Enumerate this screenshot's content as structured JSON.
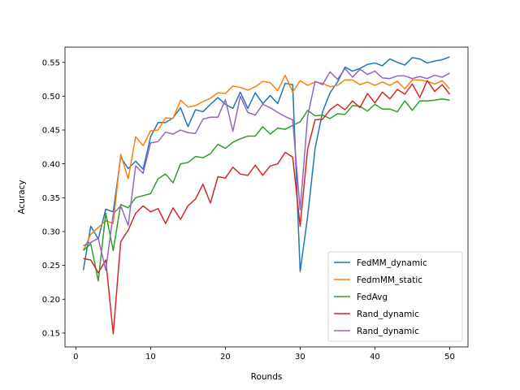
{
  "chart_data": {
    "type": "line",
    "xlabel": "Rounds",
    "ylabel": "Acuracy",
    "xlim": [
      -1.45,
      52.45
    ],
    "ylim": [
      0.1295,
      0.5725
    ],
    "xticks": [
      0,
      10,
      20,
      30,
      40,
      50
    ],
    "yticks": [
      0.15,
      0.2,
      0.25,
      0.3,
      0.35,
      0.4,
      0.45,
      0.5,
      0.55
    ],
    "grid": false,
    "legend_position": "lower-right",
    "x": [
      1,
      2,
      3,
      4,
      5,
      6,
      7,
      8,
      9,
      10,
      11,
      12,
      13,
      14,
      15,
      16,
      17,
      18,
      19,
      20,
      21,
      22,
      23,
      24,
      25,
      26,
      27,
      28,
      29,
      30,
      31,
      32,
      33,
      34,
      35,
      36,
      37,
      38,
      39,
      40,
      41,
      42,
      43,
      44,
      45,
      46,
      47,
      48,
      49,
      50
    ],
    "series": [
      {
        "name": "FedMM_dynamic",
        "color": "#1f77b4",
        "values": [
          0.243,
          0.308,
          0.289,
          0.333,
          0.329,
          0.41,
          0.393,
          0.404,
          0.392,
          0.44,
          0.461,
          0.461,
          0.468,
          0.483,
          0.455,
          0.48,
          0.477,
          0.488,
          0.498,
          0.488,
          0.482,
          0.506,
          0.482,
          0.505,
          0.489,
          0.501,
          0.489,
          0.519,
          0.517,
          0.241,
          0.322,
          0.423,
          0.477,
          0.505,
          0.521,
          0.543,
          0.537,
          0.541,
          0.547,
          0.549,
          0.545,
          0.555,
          0.55,
          0.546,
          0.557,
          0.555,
          0.549,
          0.552,
          0.554,
          0.558
        ]
      },
      {
        "name": "FedmMM_static",
        "color": "#ff7f0e",
        "values": [
          0.272,
          0.296,
          0.306,
          0.316,
          0.312,
          0.414,
          0.378,
          0.44,
          0.427,
          0.449,
          0.45,
          0.468,
          0.467,
          0.494,
          0.484,
          0.486,
          0.492,
          0.497,
          0.505,
          0.504,
          0.515,
          0.513,
          0.509,
          0.514,
          0.522,
          0.52,
          0.508,
          0.531,
          0.506,
          0.523,
          0.516,
          0.521,
          0.519,
          0.514,
          0.516,
          0.524,
          0.524,
          0.517,
          0.521,
          0.516,
          0.521,
          0.516,
          0.522,
          0.511,
          0.524,
          0.524,
          0.522,
          0.518,
          0.523,
          0.511
        ]
      },
      {
        "name": "FedAvg",
        "color": "#2ca02c",
        "values": [
          0.272,
          0.282,
          0.227,
          0.327,
          0.272,
          0.34,
          0.335,
          0.35,
          0.353,
          0.356,
          0.378,
          0.385,
          0.372,
          0.4,
          0.402,
          0.411,
          0.409,
          0.415,
          0.429,
          0.423,
          0.432,
          0.437,
          0.441,
          0.441,
          0.455,
          0.444,
          0.453,
          0.451,
          0.457,
          0.462,
          0.479,
          0.471,
          0.472,
          0.467,
          0.474,
          0.473,
          0.486,
          0.485,
          0.478,
          0.488,
          0.481,
          0.481,
          0.477,
          0.493,
          0.479,
          0.493,
          0.493,
          0.494,
          0.496,
          0.494
        ]
      },
      {
        "name": "Rand_dynamic",
        "color": "#d62728",
        "values": [
          0.26,
          0.258,
          0.239,
          0.258,
          0.149,
          0.285,
          0.302,
          0.327,
          0.338,
          0.329,
          0.334,
          0.312,
          0.335,
          0.318,
          0.338,
          0.348,
          0.37,
          0.342,
          0.381,
          0.379,
          0.395,
          0.385,
          0.383,
          0.398,
          0.383,
          0.397,
          0.4,
          0.417,
          0.41,
          0.308,
          0.422,
          0.465,
          0.466,
          0.48,
          0.488,
          0.48,
          0.493,
          0.483,
          0.504,
          0.49,
          0.506,
          0.496,
          0.51,
          0.503,
          0.518,
          0.498,
          0.523,
          0.507,
          0.517,
          0.503
        ]
      },
      {
        "name": "Rand_dynamic",
        "color": "#9467bd",
        "values": [
          0.279,
          0.284,
          0.29,
          0.243,
          0.326,
          0.338,
          0.309,
          0.397,
          0.386,
          0.431,
          0.433,
          0.447,
          0.444,
          0.45,
          0.446,
          0.445,
          0.466,
          0.469,
          0.469,
          0.495,
          0.448,
          0.5,
          0.476,
          0.472,
          0.488,
          0.483,
          0.476,
          0.47,
          0.465,
          0.332,
          0.47,
          0.522,
          0.517,
          0.536,
          0.525,
          0.541,
          0.528,
          0.54,
          0.532,
          0.537,
          0.527,
          0.526,
          0.53,
          0.53,
          0.526,
          0.529,
          0.526,
          0.531,
          0.528,
          0.534
        ]
      }
    ]
  }
}
